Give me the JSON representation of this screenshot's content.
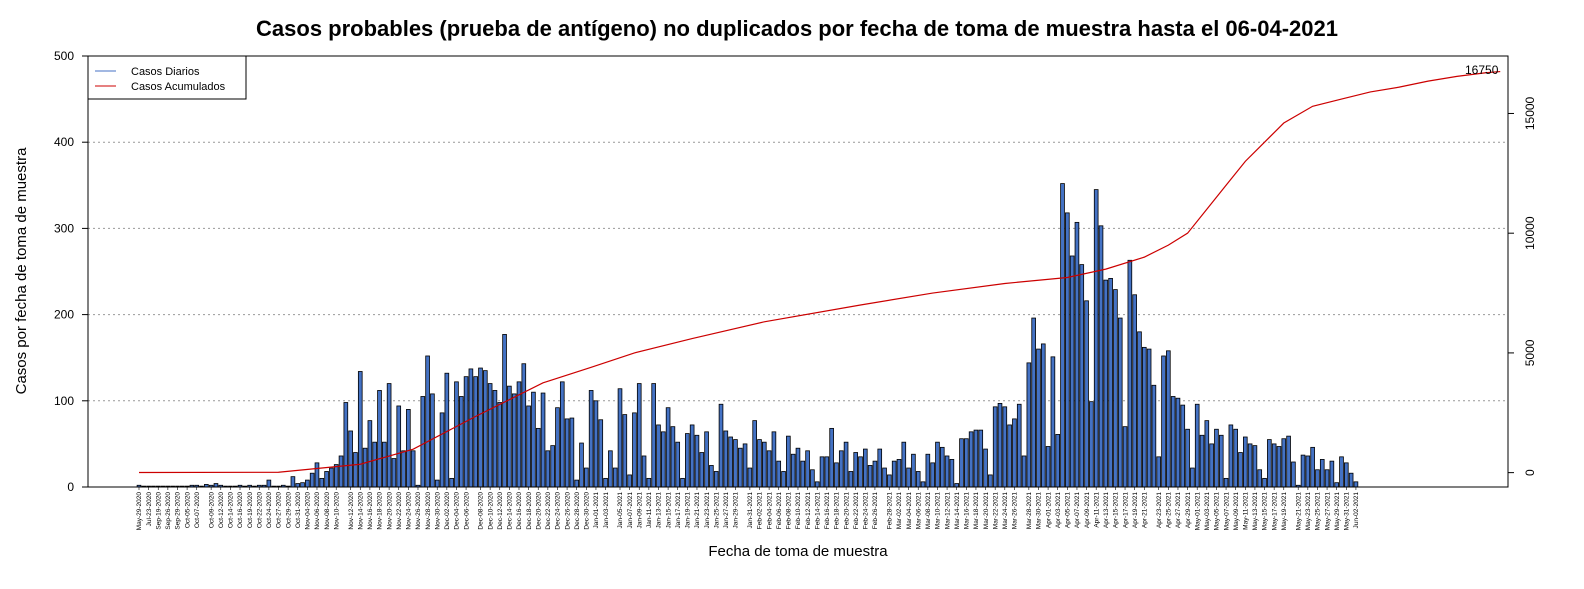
{
  "chart_data": {
    "type": "bar",
    "title": "Casos probables (prueba de antígeno) no duplicados por fecha de toma de muestra hasta el 06-04-2021",
    "xlabel": "Fecha de toma de muestra",
    "ylabel": "Casos por fecha de toma de muestra",
    "ylim": [
      0,
      500
    ],
    "yticks": [
      0,
      100,
      200,
      300,
      400,
      500
    ],
    "y2lim": [
      -600,
      17400
    ],
    "y2ticks": [
      0,
      5000,
      10000,
      15000
    ],
    "grid": "horizontal dotted at left-axis ticks",
    "legend_position": "top-left",
    "final_cumulative_label": "16750",
    "colors": {
      "bars": "#4472C4",
      "bar_border": "#000000",
      "cumulative_line": "#CC0000",
      "legend_daily": "#4472C4",
      "grid": "#999999"
    },
    "x_tick_labels": [
      "May-29-2020",
      "Jul-23-2020",
      "Sep-19-2020",
      "Sep-26-2020",
      "Sep-29-2020",
      "Oct-05-2020",
      "Oct-07-2020",
      "Oct-09-2020",
      "Oct-12-2020",
      "Oct-14-2020",
      "Oct-16-2020",
      "Oct-19-2020",
      "Oct-22-2020",
      "Oct-24-2020",
      "Oct-27-2020",
      "Oct-29-2020",
      "Oct-31-2020",
      "Nov-04-2020",
      "Nov-06-2020",
      "Nov-08-2020",
      "Nov-10-2020",
      "Nov-12-2020",
      "Nov-14-2020",
      "Nov-16-2020",
      "Nov-18-2020",
      "Nov-20-2020",
      "Nov-22-2020",
      "Nov-24-2020",
      "Nov-26-2020",
      "Nov-28-2020",
      "Nov-30-2020",
      "Dec-02-2020",
      "Dec-04-2020",
      "Dec-06-2020",
      "Dec-08-2020",
      "Dec-10-2020",
      "Dec-12-2020",
      "Dec-14-2020",
      "Dec-16-2020",
      "Dec-18-2020",
      "Dec-20-2020",
      "Dec-22-2020",
      "Dec-24-2020",
      "Dec-26-2020",
      "Dec-28-2020",
      "Dec-30-2020",
      "Jan-01-2021",
      "Jan-03-2021",
      "Jan-05-2021",
      "Jan-07-2021",
      "Jan-09-2021",
      "Jan-11-2021",
      "Jan-13-2021",
      "Jan-15-2021",
      "Jan-17-2021",
      "Jan-19-2021",
      "Jan-21-2021",
      "Jan-23-2021",
      "Jan-25-2021",
      "Jan-27-2021",
      "Jan-29-2021",
      "Jan-31-2021",
      "Feb-02-2021",
      "Feb-04-2021",
      "Feb-06-2021",
      "Feb-08-2021",
      "Feb-10-2021",
      "Feb-12-2021",
      "Feb-14-2021",
      "Feb-16-2021",
      "Feb-18-2021",
      "Feb-20-2021",
      "Feb-22-2021",
      "Feb-24-2021",
      "Feb-26-2021",
      "Feb-28-2021",
      "Mar-02-2021",
      "Mar-04-2021",
      "Mar-06-2021",
      "Mar-08-2021",
      "Mar-10-2021",
      "Mar-12-2021",
      "Mar-14-2021",
      "Mar-16-2021",
      "Mar-18-2021",
      "Mar-20-2021",
      "Mar-22-2021",
      "Mar-24-2021",
      "Mar-26-2021",
      "Mar-28-2021",
      "Mar-30-2021",
      "Apr-01-2021",
      "Apr-03-2021",
      "Apr-05-2021",
      "Apr-07-2021",
      "Apr-09-2021",
      "Apr-11-2021",
      "Apr-13-2021",
      "Apr-15-2021",
      "Apr-17-2021",
      "Apr-19-2021",
      "Apr-21-2021",
      "Apr-23-2021",
      "Apr-25-2021",
      "Apr-27-2021",
      "Apr-29-2021",
      "May-01-2021",
      "May-03-2021",
      "May-05-2021",
      "May-07-2021",
      "May-09-2021",
      "May-11-2021",
      "May-13-2021",
      "May-15-2021",
      "May-17-2021",
      "May-19-2021",
      "May-21-2021",
      "May-23-2021",
      "May-25-2021",
      "May-27-2021",
      "May-29-2021",
      "May-31-2021",
      "Jun-02-2021"
    ],
    "series": [
      {
        "name": "Casos Diarios",
        "values": [
          2,
          1,
          1,
          1,
          1,
          1,
          1,
          1,
          1,
          1,
          1,
          2,
          2,
          1,
          3,
          2,
          4,
          2,
          1,
          1,
          1,
          2,
          1,
          2,
          1,
          2,
          2,
          8,
          1,
          1,
          2,
          1,
          12,
          4,
          5,
          8,
          16,
          28,
          10,
          18,
          22,
          26,
          36,
          98,
          65,
          40,
          134,
          45,
          77,
          52,
          112,
          52,
          120,
          33,
          94,
          42,
          90,
          42,
          2,
          105,
          152,
          108,
          8,
          86,
          132,
          10,
          122,
          105,
          128,
          137,
          128,
          138,
          135,
          120,
          112,
          98,
          177,
          117,
          108,
          122,
          143,
          94,
          110,
          68,
          109,
          42,
          48,
          92,
          122,
          79,
          80,
          8,
          51,
          22,
          112,
          100,
          78,
          10,
          42,
          22,
          114,
          84,
          14,
          86,
          120,
          36,
          10,
          120,
          72,
          64,
          92,
          70,
          52,
          10,
          62,
          72,
          60,
          40,
          64,
          25,
          18,
          96,
          65,
          58,
          55,
          45,
          50,
          22,
          77,
          55,
          52,
          42,
          64,
          30,
          18,
          59,
          38,
          45,
          30,
          42,
          20,
          6,
          35,
          35,
          68,
          28,
          42,
          52,
          18,
          40,
          35,
          44,
          25,
          30,
          44,
          22,
          14,
          30,
          32,
          52,
          22,
          38,
          18,
          6,
          38,
          28,
          52,
          46,
          36,
          32,
          4,
          56,
          56,
          64,
          66,
          66,
          44,
          14,
          93,
          97,
          93,
          72,
          79,
          96,
          36,
          144,
          196,
          160,
          166,
          47,
          151,
          61,
          352,
          318,
          268,
          307,
          258,
          216,
          99,
          345,
          303,
          240,
          242,
          229,
          196,
          70,
          263,
          223,
          180,
          162,
          160,
          118,
          35,
          152,
          158,
          105,
          103,
          95,
          67,
          22,
          96,
          60,
          77,
          50,
          67,
          60,
          10,
          72,
          67,
          40,
          58,
          50,
          48,
          20,
          10,
          55,
          50,
          47,
          56,
          59,
          29,
          2,
          37,
          36,
          46,
          20,
          32,
          20,
          30,
          5,
          35,
          28,
          16,
          6
        ]
      },
      {
        "name": "Casos Acumulados",
        "points": [
          [
            0,
            5
          ],
          [
            29,
            15
          ],
          [
            46,
            350
          ],
          [
            57,
            980
          ],
          [
            70,
            2350
          ],
          [
            84,
            3750
          ],
          [
            94,
            4400
          ],
          [
            103,
            5000
          ],
          [
            115,
            5600
          ],
          [
            130,
            6300
          ],
          [
            150,
            7000
          ],
          [
            165,
            7500
          ],
          [
            180,
            7900
          ],
          [
            193,
            8150
          ],
          [
            201,
            8500
          ],
          [
            209,
            9000
          ],
          [
            214,
            9500
          ],
          [
            218,
            10000
          ],
          [
            222,
            11000
          ],
          [
            226,
            12000
          ],
          [
            230,
            13000
          ],
          [
            234,
            13800
          ],
          [
            238,
            14600
          ],
          [
            244,
            15300
          ],
          [
            250,
            15600
          ],
          [
            256,
            15900
          ],
          [
            262,
            16100
          ],
          [
            268,
            16350
          ],
          [
            274,
            16550
          ],
          [
            280,
            16700
          ],
          [
            283,
            16750
          ]
        ]
      }
    ]
  }
}
